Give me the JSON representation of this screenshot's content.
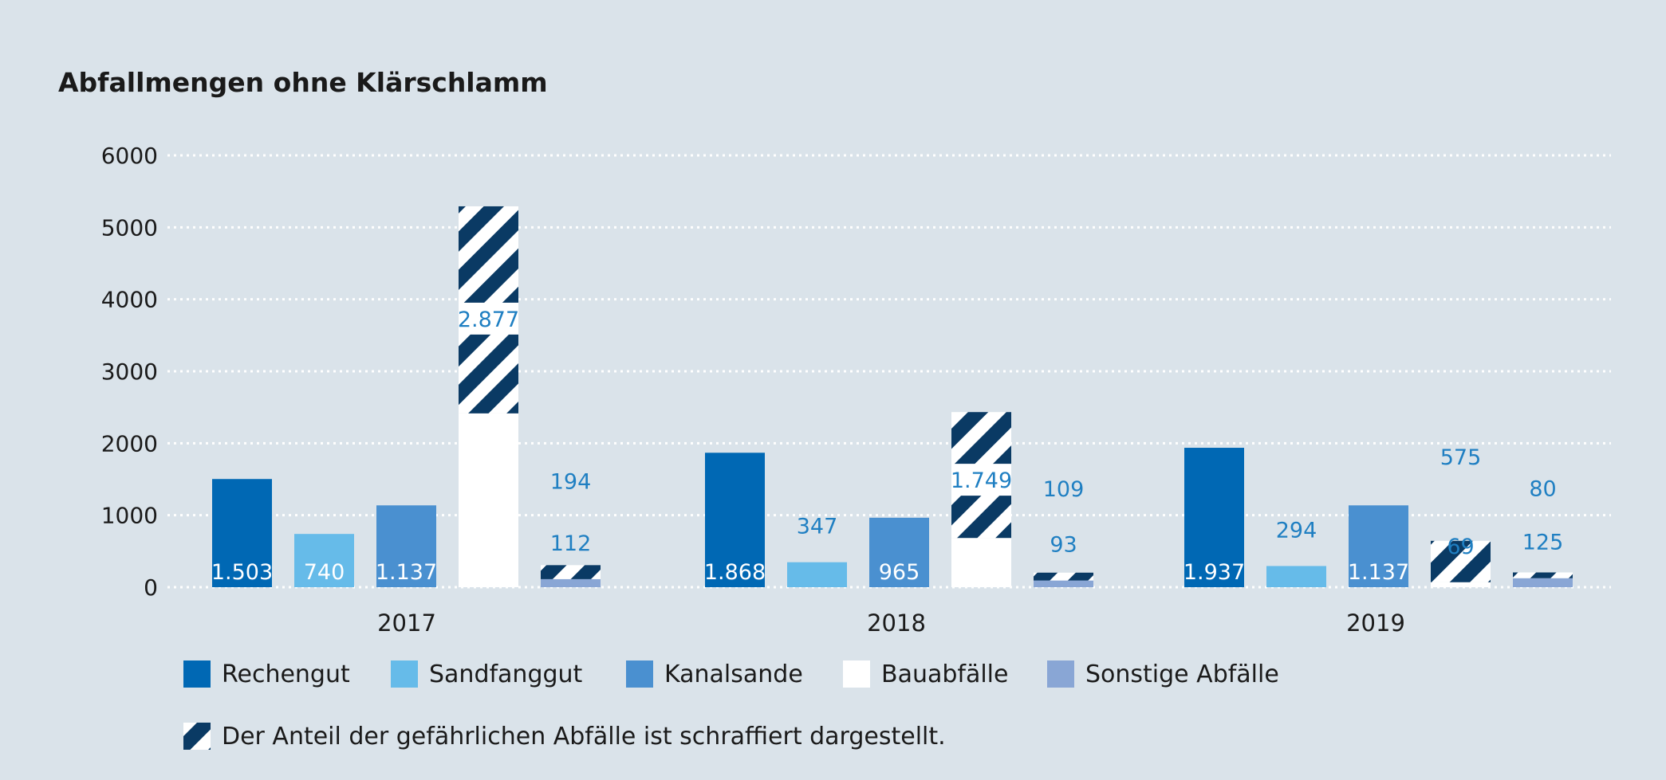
{
  "chart_data": {
    "type": "bar",
    "title": "Abfallmengen ohne Klärschlamm",
    "ylim": [
      0,
      6000
    ],
    "yticks": [
      "0",
      "1000",
      "2000",
      "3000",
      "4000",
      "5000",
      "6000"
    ],
    "grid": true,
    "categories": [
      "2017",
      "2018",
      "2019"
    ],
    "series": [
      {
        "name": "Rechengut",
        "color": "#0068b4",
        "base": [
          1503,
          1868,
          1937
        ],
        "hazardous": [
          0,
          0,
          0
        ],
        "base_labels": [
          "1.503",
          "1.868",
          "1.937"
        ],
        "hazardous_labels": [
          "",
          "",
          ""
        ]
      },
      {
        "name": "Sandfanggut",
        "color": "#66bbe9",
        "base": [
          740,
          347,
          294
        ],
        "hazardous": [
          0,
          0,
          0
        ],
        "base_labels": [
          "740",
          "347",
          "294"
        ],
        "hazardous_labels": [
          "",
          "",
          ""
        ]
      },
      {
        "name": "Kanalsande",
        "color": "#4a90d0",
        "base": [
          1137,
          965,
          1137
        ],
        "hazardous": [
          0,
          0,
          0
        ],
        "base_labels": [
          "1.137",
          "965",
          "1.137"
        ],
        "hazardous_labels": [
          "",
          "",
          ""
        ]
      },
      {
        "name": "Bauabfälle",
        "color": "#ffffff",
        "base": [
          2415,
          684,
          69
        ],
        "hazardous": [
          2877,
          1749,
          575
        ],
        "base_labels": [
          "2.415",
          "684",
          "69"
        ],
        "hazardous_labels": [
          "2.877",
          "1.749",
          "575"
        ]
      },
      {
        "name": "Sonstige Abfälle",
        "color": "#89a6d5",
        "base": [
          112,
          93,
          125
        ],
        "hazardous": [
          194,
          109,
          80
        ],
        "base_labels": [
          "112",
          "93",
          "125"
        ],
        "hazardous_labels": [
          "194",
          "109",
          "80"
        ]
      }
    ],
    "legend_position": "bottom",
    "hatch_note": "Der Anteil der gefährlichen Abfälle ist schraffiert dargestellt.",
    "colors": {
      "hatch": "#0a3a64",
      "label_inside": "#ffffff",
      "label_outside": "#1f7fc2",
      "grid": "#ffffff",
      "text": "#1a1a1a"
    }
  }
}
